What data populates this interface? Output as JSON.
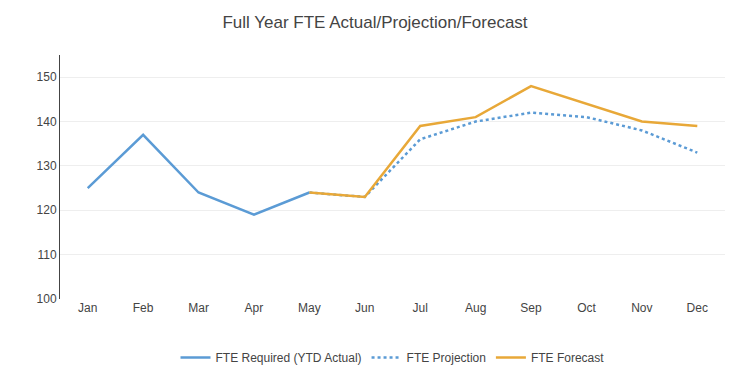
{
  "chart_data": {
    "type": "line",
    "title": "Full Year FTE Actual/Projection/Forecast",
    "categories": [
      "Jan",
      "Feb",
      "Mar",
      "Apr",
      "May",
      "Jun",
      "Jul",
      "Aug",
      "Sep",
      "Oct",
      "Nov",
      "Dec"
    ],
    "series": [
      {
        "name": "FTE Required (YTD Actual)",
        "color": "#5b9bd5",
        "line_style": "solid",
        "values": [
          125,
          137,
          124,
          119,
          124,
          null,
          null,
          null,
          null,
          null,
          null,
          null
        ]
      },
      {
        "name": "FTE Projection",
        "color": "#5b9bd5",
        "line_style": "dotted",
        "values": [
          null,
          null,
          null,
          null,
          124,
          123,
          136,
          140,
          142,
          141,
          138,
          133
        ]
      },
      {
        "name": "FTE Forecast",
        "color": "#e8a838",
        "line_style": "solid",
        "values": [
          null,
          null,
          null,
          null,
          124,
          123,
          139,
          141,
          148,
          144,
          140,
          139
        ]
      }
    ],
    "ylim": [
      100,
      155
    ],
    "yticks": [
      100,
      110,
      120,
      130,
      140,
      150
    ],
    "grid": true,
    "legend": "bottom"
  }
}
